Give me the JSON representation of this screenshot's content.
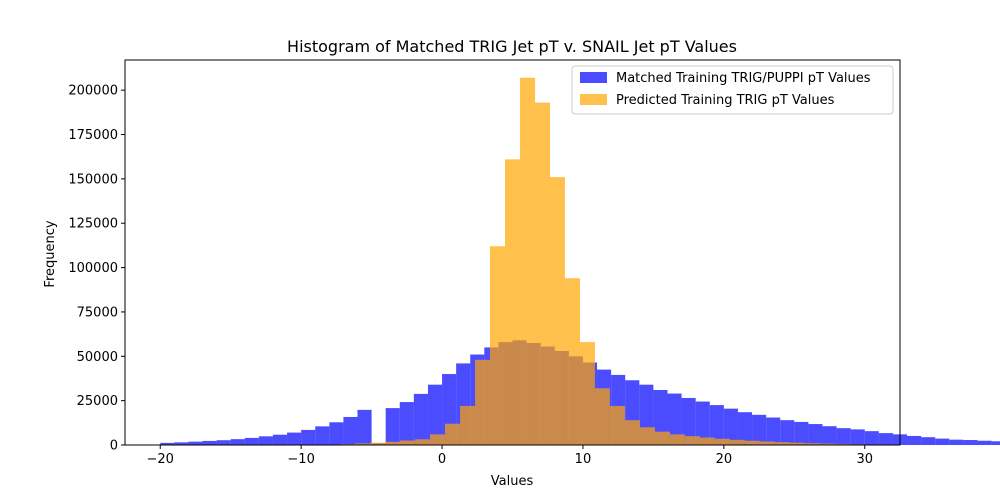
{
  "chart_data": {
    "type": "bar",
    "title": "Histogram of Matched TRIG Jet pT v. SNAIL Jet pT Values",
    "xlabel": "Values",
    "ylabel": "Frequency",
    "xlim": [
      -22.5,
      32.5
    ],
    "ylim": [
      0,
      217000
    ],
    "x_ticks": [
      -20,
      -10,
      0,
      10,
      20,
      30
    ],
    "y_ticks": [
      0,
      25000,
      50000,
      75000,
      100000,
      125000,
      150000,
      175000,
      200000
    ],
    "legend_position": "top-right",
    "series": [
      {
        "name": "Matched Training TRIG/PUPPI pT Values",
        "color": "#0000ff",
        "alpha": 0.7,
        "bin_start": -20,
        "bin_width": 1,
        "values": [
          1200,
          1500,
          1900,
          2300,
          2700,
          3300,
          4000,
          4900,
          5800,
          7000,
          8500,
          10500,
          12800,
          15800,
          19800,
          1000,
          20800,
          24200,
          28800,
          34000,
          40000,
          46000,
          51000,
          55000,
          58000,
          59000,
          57500,
          55500,
          53000,
          50000,
          46500,
          42500,
          39500,
          36500,
          34000,
          31000,
          29000,
          26500,
          24500,
          22500,
          20500,
          18500,
          17000,
          15500,
          14000,
          13000,
          11800,
          10600,
          9500,
          8800,
          7800,
          6700,
          6000,
          5100,
          4400,
          3600,
          3000,
          2800,
          2400,
          2100,
          1900,
          1700,
          1500,
          1300,
          1200,
          1000,
          900,
          800,
          700,
          600
        ]
      },
      {
        "name": "Predicted Training TRIG pT Values",
        "color": "#ffa500",
        "alpha": 0.7,
        "bin_edges": [
          -20,
          -18.94,
          -17.87,
          -16.81,
          -15.74,
          -14.68,
          -13.62,
          -12.55,
          -11.49,
          -10.43,
          -9.36,
          -8.3,
          -7.23,
          -6.17,
          -5.11,
          -4.04,
          -2.98,
          -1.91,
          -0.85,
          0.21,
          1.28,
          2.34,
          3.4,
          4.47,
          5.53,
          6.6,
          7.66,
          8.72,
          9.79,
          10.85,
          11.91,
          12.98,
          14.04,
          15.11,
          16.17,
          17.23,
          18.3,
          19.36,
          20.43,
          21.49,
          22.55,
          23.62,
          24.68,
          25.74,
          26.81,
          27.87,
          28.94,
          30.0
        ],
        "values": [
          0,
          0,
          0,
          0,
          0,
          0,
          0,
          0,
          0,
          0,
          0,
          0,
          500,
          900,
          1300,
          1800,
          2500,
          3200,
          6000,
          12000,
          22000,
          48000,
          112000,
          161000,
          207000,
          193000,
          151000,
          94000,
          58000,
          32000,
          22000,
          14000,
          10000,
          7500,
          6000,
          5000,
          4200,
          3500,
          2900,
          2400,
          2000,
          1600,
          1300,
          1000,
          800,
          600,
          400
        ]
      }
    ]
  }
}
